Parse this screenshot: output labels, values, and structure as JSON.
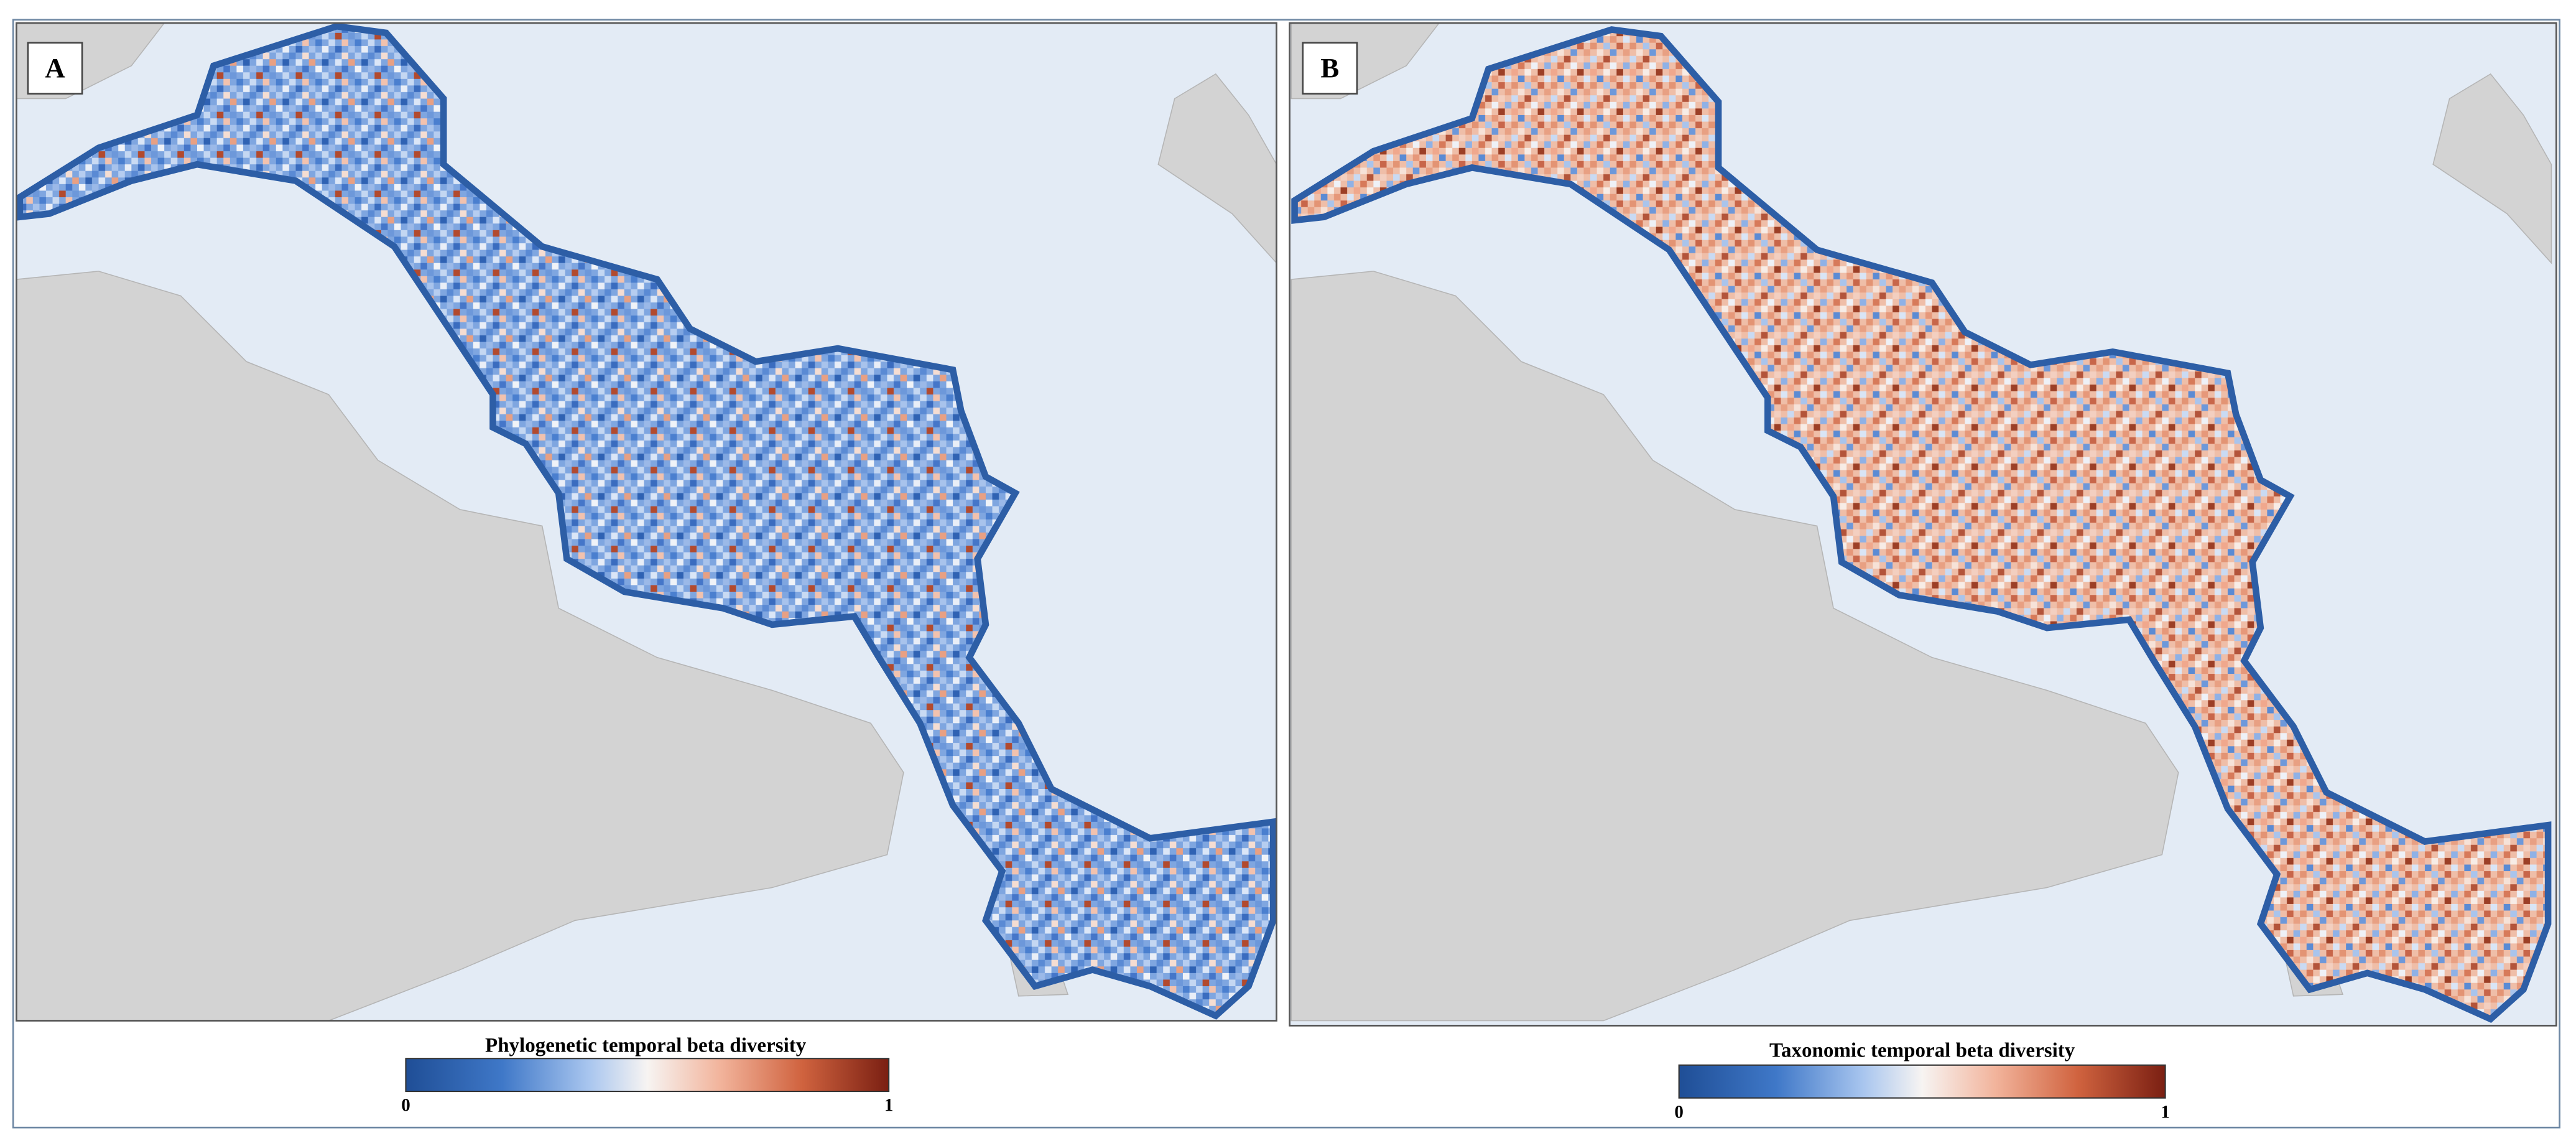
{
  "panels": [
    {
      "label": "A",
      "legend": {
        "title": "Phylogenetic temporal beta diversity",
        "min": 0,
        "max": 1
      }
    },
    {
      "label": "B",
      "legend": {
        "title": "Taxonomic temporal beta diversity",
        "min": 0,
        "max": 1
      }
    }
  ]
}
